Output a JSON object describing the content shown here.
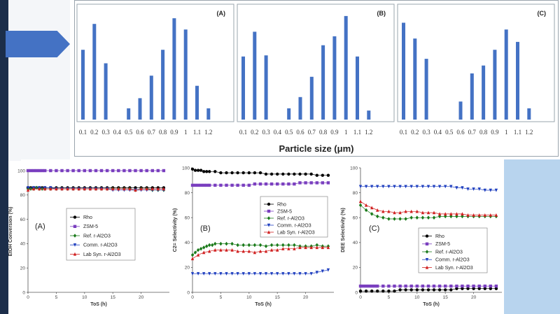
{
  "chart_data": [
    {
      "type": "bar",
      "panel": "(A)",
      "categories": [
        "0.1",
        "0.2",
        "0.3",
        "0.4",
        "0.5",
        "0.6",
        "0.7",
        "0.8",
        "0.9",
        "1",
        "1.1",
        "1.2"
      ],
      "values": [
        0.62,
        0.85,
        0.5,
        0,
        0.1,
        0.19,
        0.39,
        0.62,
        0.9,
        0.8,
        0.3,
        0.1
      ],
      "xlabel": "Particle size (μm)",
      "ylim": [
        0,
        1
      ]
    },
    {
      "type": "bar",
      "panel": "(B)",
      "categories": [
        "0.1",
        "0.2",
        "0.3",
        "0.4",
        "0.5",
        "0.6",
        "0.7",
        "0.8",
        "0.9",
        "1",
        "1.1",
        "1.2"
      ],
      "values": [
        0.56,
        0.78,
        0.57,
        0,
        0.1,
        0.2,
        0.38,
        0.66,
        0.74,
        0.92,
        0.56,
        0.08
      ],
      "xlabel": "Particle size (μm)",
      "ylim": [
        0,
        1
      ]
    },
    {
      "type": "bar",
      "panel": "(C)",
      "categories": [
        "0.1",
        "0.2",
        "0.3",
        "0.4",
        "0.5",
        "0.6",
        "0.7",
        "0.8",
        "0.9",
        "1",
        "1.1",
        "1.2"
      ],
      "values": [
        0.86,
        0.72,
        0.54,
        0,
        0,
        0.16,
        0.41,
        0.48,
        0.62,
        0.8,
        0.69,
        0.1
      ],
      "xlabel": "Particle size (μm)",
      "ylim": [
        0,
        1
      ]
    },
    {
      "type": "line",
      "panel": "(A)",
      "xlabel": "ToS (h)",
      "ylabel": "EtOH Conversion (%)",
      "xlim": [
        0,
        25
      ],
      "ylim": [
        0,
        100
      ],
      "xticks": [
        "0",
        "5",
        "10",
        "15",
        "20"
      ],
      "yticks": [
        "0",
        "20",
        "40",
        "60",
        "80",
        "100"
      ],
      "legend": "center-left",
      "series": [
        {
          "name": "Rho",
          "color": "#000000",
          "marker": "circle",
          "x": [
            0,
            0.5,
            1,
            1.5,
            2,
            2.5,
            3,
            4,
            5,
            6,
            7,
            8,
            9,
            10,
            11,
            12,
            13,
            14,
            15,
            16,
            17,
            18,
            19,
            20,
            21,
            22,
            23,
            24
          ],
          "y": [
            86,
            86,
            86,
            86,
            86,
            86,
            86,
            86,
            86,
            86,
            86,
            86,
            86,
            86,
            86,
            86,
            86,
            86,
            86,
            86,
            86,
            86,
            86,
            86,
            86,
            86,
            86,
            86
          ]
        },
        {
          "name": "ZSM-5",
          "color": "#7a3fbf",
          "marker": "square",
          "x": [
            0,
            0.5,
            1,
            1.5,
            2,
            2.5,
            3,
            4,
            5,
            6,
            7,
            8,
            9,
            10,
            11,
            12,
            13,
            14,
            15,
            16,
            17,
            18,
            19,
            20,
            21,
            22,
            23,
            24
          ],
          "y": [
            100,
            100,
            100,
            100,
            100,
            100,
            100,
            100,
            100,
            100,
            100,
            100,
            100,
            100,
            100,
            100,
            100,
            100,
            100,
            100,
            100,
            100,
            100,
            100,
            100,
            100,
            100,
            100
          ]
        },
        {
          "name": "Ref. r-Al2O3",
          "color": "#1a7a1a",
          "marker": "diamond",
          "x": [
            0,
            0.5,
            1,
            1.5,
            2,
            2.5,
            3,
            4,
            5,
            6,
            7,
            8,
            9,
            10,
            11,
            12,
            13,
            14,
            15,
            16,
            17,
            18,
            19,
            20,
            21,
            22,
            23,
            24
          ],
          "y": [
            85,
            85,
            85,
            86,
            85,
            85,
            85,
            85,
            85,
            85,
            85,
            85,
            85,
            85,
            85,
            85,
            85,
            85,
            85,
            85,
            85,
            85,
            84,
            85,
            85,
            84,
            84,
            84
          ]
        },
        {
          "name": "Comm. r-Al2O3",
          "color": "#1f3fbf",
          "marker": "triangle-down",
          "x": [
            0,
            1,
            2,
            3,
            4,
            5,
            6,
            7,
            8,
            9,
            10,
            11,
            12,
            13,
            14,
            15,
            16,
            17,
            18,
            19,
            20,
            21,
            22,
            23,
            24
          ],
          "y": [
            86,
            86,
            86,
            86,
            86,
            85,
            85,
            85,
            85,
            85,
            85,
            85,
            85,
            85,
            85,
            84,
            84,
            84,
            84,
            84,
            84,
            84,
            84,
            84,
            84
          ]
        },
        {
          "name": "Lab Syn. r-Al2O3",
          "color": "#d02020",
          "marker": "triangle-up",
          "x": [
            0,
            1,
            2,
            3,
            4,
            5,
            6,
            7,
            8,
            9,
            10,
            11,
            12,
            13,
            14,
            15,
            16,
            17,
            18,
            19,
            20,
            21,
            22,
            23,
            24
          ],
          "y": [
            84,
            85,
            85,
            85,
            85,
            85,
            85,
            85,
            85,
            85,
            85,
            85,
            85,
            85,
            85,
            85,
            85,
            85,
            85,
            84,
            85,
            85,
            85,
            85,
            85
          ]
        }
      ]
    },
    {
      "type": "line",
      "panel": "(B)",
      "xlabel": "ToS (h)",
      "ylabel": "C2= Selectivity (%)",
      "xlim": [
        0,
        25
      ],
      "ylim": [
        0,
        100
      ],
      "xticks": [
        "0",
        "5",
        "10",
        "15",
        "20"
      ],
      "yticks": [
        "0",
        "20",
        "40",
        "60",
        "80",
        "100"
      ],
      "legend": "center-right",
      "series": [
        {
          "name": "Rho",
          "color": "#000000",
          "marker": "circle",
          "x": [
            0,
            0.5,
            1,
            1.5,
            2,
            2.5,
            3,
            4,
            5,
            6,
            7,
            8,
            9,
            10,
            11,
            12,
            13,
            14,
            15,
            16,
            17,
            18,
            19,
            20,
            21,
            22,
            23,
            24
          ],
          "y": [
            99,
            98,
            98,
            98,
            97,
            97,
            97,
            97,
            96,
            96,
            96,
            96,
            96,
            96,
            96,
            96,
            95,
            95,
            95,
            95,
            95,
            95,
            95,
            95,
            95,
            94,
            94,
            94
          ]
        },
        {
          "name": "ZSM-5",
          "color": "#7a3fbf",
          "marker": "square",
          "x": [
            0,
            0.5,
            1,
            1.5,
            2,
            2.5,
            3,
            4,
            5,
            6,
            7,
            8,
            9,
            10,
            11,
            12,
            13,
            14,
            15,
            16,
            17,
            18,
            19,
            20,
            21,
            22,
            23,
            24
          ],
          "y": [
            86,
            86,
            86,
            86,
            86,
            86,
            86,
            86,
            86,
            86,
            86,
            86,
            86,
            86,
            87,
            87,
            87,
            87,
            87,
            87,
            87,
            87,
            88,
            88,
            88,
            88,
            88,
            88
          ]
        },
        {
          "name": "Ref. r-Al2O3",
          "color": "#1a7a1a",
          "marker": "diamond",
          "x": [
            0,
            0.5,
            1,
            1.5,
            2,
            2.5,
            3,
            3.5,
            4,
            5,
            6,
            7,
            8,
            9,
            10,
            11,
            12,
            13,
            14,
            15,
            16,
            17,
            18,
            19,
            20,
            21,
            22,
            23,
            24
          ],
          "y": [
            30,
            32,
            34,
            35,
            36,
            37,
            38,
            38,
            39,
            39,
            39,
            39,
            38,
            38,
            38,
            38,
            38,
            37,
            38,
            38,
            38,
            38,
            38,
            37,
            37,
            37,
            38,
            37,
            37
          ]
        },
        {
          "name": "Comm. r-Al2O3",
          "color": "#1f3fbf",
          "marker": "triangle-down",
          "x": [
            0,
            1,
            2,
            3,
            4,
            5,
            6,
            7,
            8,
            9,
            10,
            11,
            12,
            13,
            14,
            15,
            16,
            17,
            18,
            19,
            20,
            21,
            22,
            23,
            24
          ],
          "y": [
            15,
            15,
            15,
            15,
            15,
            15,
            15,
            15,
            15,
            15,
            15,
            15,
            15,
            15,
            15,
            15,
            15,
            15,
            15,
            15,
            15,
            15,
            16,
            17,
            18
          ]
        },
        {
          "name": "Lab Syn. r-Al2O3",
          "color": "#d02020",
          "marker": "triangle-up",
          "x": [
            0,
            1,
            2,
            3,
            4,
            5,
            6,
            7,
            8,
            9,
            10,
            11,
            12,
            13,
            14,
            15,
            16,
            17,
            18,
            19,
            20,
            21,
            22,
            23,
            24
          ],
          "y": [
            27,
            30,
            32,
            33,
            34,
            34,
            34,
            34,
            33,
            33,
            33,
            32,
            33,
            33,
            34,
            34,
            35,
            35,
            35,
            36,
            36,
            36,
            36,
            36,
            36
          ]
        }
      ]
    },
    {
      "type": "line",
      "panel": "(C)",
      "xlabel": "ToS (h)",
      "ylabel": "DEE Selectivity (%)",
      "xlim": [
        0,
        25
      ],
      "ylim": [
        0,
        100
      ],
      "xticks": [
        "0",
        "5",
        "10",
        "15",
        "20"
      ],
      "yticks": [
        "0",
        "20",
        "40",
        "60",
        "80",
        "100"
      ],
      "legend": "bottom-right",
      "series": [
        {
          "name": "Rho",
          "color": "#000000",
          "marker": "circle",
          "x": [
            0,
            1,
            2,
            3,
            4,
            5,
            6,
            7,
            8,
            9,
            10,
            11,
            12,
            13,
            14,
            15,
            16,
            17,
            18,
            19,
            20,
            21,
            22,
            23,
            24
          ],
          "y": [
            1,
            1,
            1,
            1,
            1,
            1,
            1,
            2,
            2,
            2,
            2,
            2,
            2,
            2,
            2,
            2,
            2,
            3,
            3,
            3,
            3,
            3,
            3,
            3,
            3
          ]
        },
        {
          "name": "ZSM-5",
          "color": "#7a3fbf",
          "marker": "square",
          "x": [
            0,
            0.5,
            1,
            1.5,
            2,
            2.5,
            3,
            4,
            5,
            6,
            7,
            8,
            9,
            10,
            11,
            12,
            13,
            14,
            15,
            16,
            17,
            18,
            19,
            20,
            21,
            22,
            23,
            24
          ],
          "y": [
            5,
            5,
            5,
            5,
            5,
            5,
            5,
            5,
            5,
            5,
            5,
            5,
            5,
            5,
            5,
            5,
            5,
            5,
            5,
            5,
            5,
            5,
            5,
            5,
            5,
            5,
            5,
            5
          ]
        },
        {
          "name": "Ref. r-Al2O3",
          "color": "#1a7a1a",
          "marker": "diamond",
          "x": [
            0,
            1,
            2,
            3,
            4,
            5,
            6,
            7,
            8,
            9,
            10,
            11,
            12,
            13,
            14,
            15,
            16,
            17,
            18,
            19,
            20,
            21,
            22,
            23,
            24
          ],
          "y": [
            70,
            66,
            63,
            61,
            60,
            59,
            59,
            59,
            59,
            60,
            60,
            60,
            60,
            60,
            61,
            61,
            61,
            61,
            61,
            61,
            61,
            61,
            61,
            61,
            61
          ]
        },
        {
          "name": "Comm. r-Al2O3",
          "color": "#1f3fbf",
          "marker": "triangle-down",
          "x": [
            0,
            1,
            2,
            3,
            4,
            5,
            6,
            7,
            8,
            9,
            10,
            11,
            12,
            13,
            14,
            15,
            16,
            17,
            18,
            19,
            20,
            21,
            22,
            23,
            24
          ],
          "y": [
            85,
            85,
            85,
            85,
            85,
            85,
            85,
            85,
            85,
            85,
            85,
            85,
            85,
            85,
            85,
            85,
            85,
            84,
            84,
            83,
            83,
            83,
            82,
            82,
            82
          ]
        },
        {
          "name": "Lab Syn. r-Al2O3",
          "color": "#d02020",
          "marker": "triangle-up",
          "x": [
            0,
            1,
            2,
            3,
            4,
            5,
            6,
            7,
            8,
            9,
            10,
            11,
            12,
            13,
            14,
            15,
            16,
            17,
            18,
            19,
            20,
            21,
            22,
            23,
            24
          ],
          "y": [
            73,
            70,
            68,
            66,
            65,
            65,
            64,
            64,
            65,
            65,
            65,
            64,
            64,
            64,
            63,
            63,
            63,
            63,
            63,
            62,
            62,
            62,
            62,
            62,
            62
          ]
        }
      ]
    }
  ]
}
